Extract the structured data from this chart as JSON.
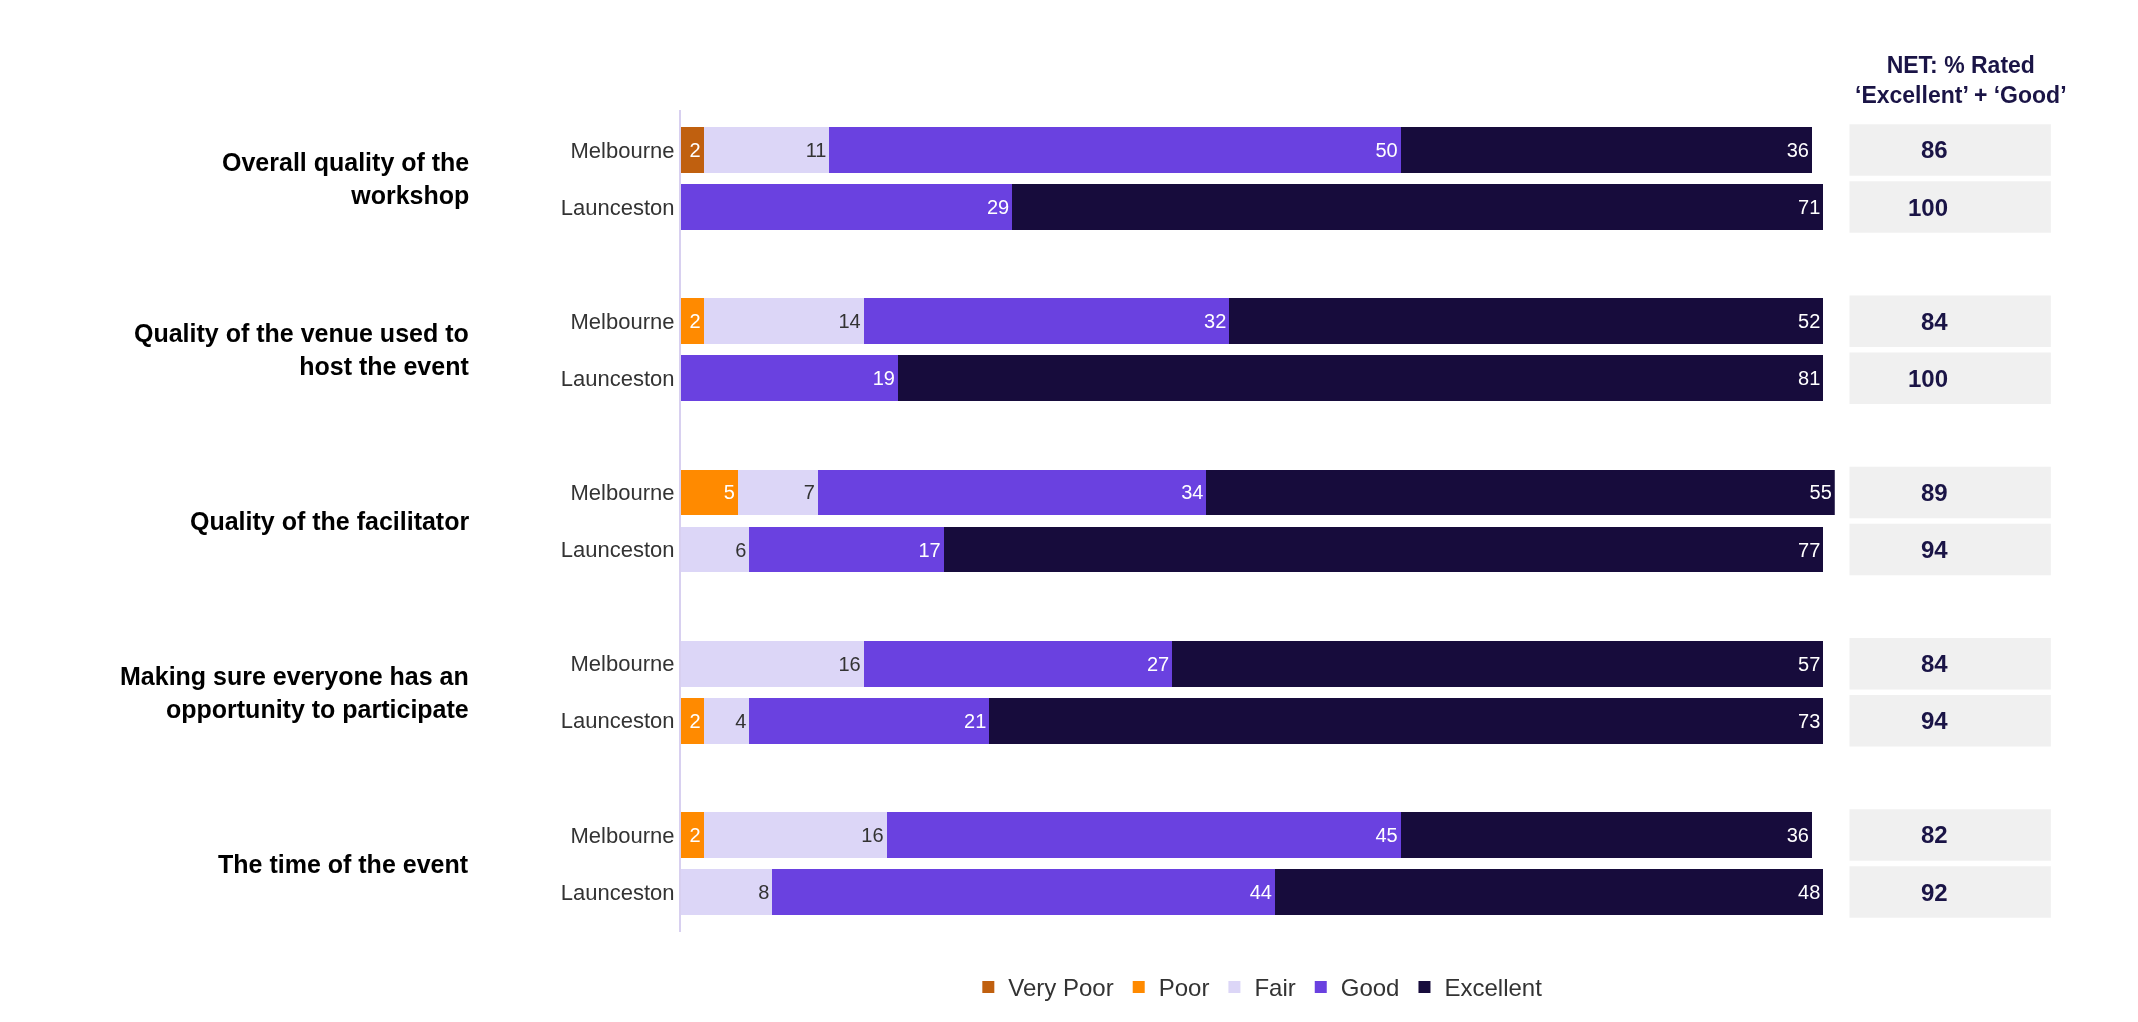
{
  "chart_data": {
    "type": "bar",
    "orientation": "horizontal",
    "stacked": true,
    "data_labels": true,
    "categories": [
      "Melbourne",
      "Launceston",
      "Melbourne",
      "Launceston",
      "Melbourne",
      "Launceston",
      "Melbourne",
      "Launceston",
      "Melbourne",
      "Launceston"
    ],
    "series": [
      {
        "name": "Very Poor",
        "color": "#c0600f",
        "values": [
          2,
          null,
          null,
          null,
          null,
          null,
          null,
          null,
          null,
          null
        ]
      },
      {
        "name": "Poor",
        "color": "#ff8a00",
        "values": [
          null,
          null,
          2,
          null,
          5,
          null,
          null,
          2,
          2,
          null
        ]
      },
      {
        "name": "Fair",
        "color": "#dcd6f7",
        "values": [
          11,
          null,
          14,
          null,
          7,
          6,
          16,
          4,
          16,
          8
        ]
      },
      {
        "name": "Good",
        "color": "#6a41e0",
        "values": [
          50,
          29,
          32,
          19,
          34,
          17,
          27,
          21,
          45,
          44
        ]
      },
      {
        "name": "Excellent",
        "color": "#170c3c",
        "values": [
          36,
          71,
          52,
          81,
          55,
          77,
          57,
          73,
          36,
          48
        ]
      }
    ],
    "xlim": [
      0,
      101
    ],
    "annotations": [
      "Overall quality of the workshop",
      "Quality of the venue used to host the event",
      "Quality of the facilitator",
      "Making sure everyone has an opportunity to participate",
      "The time of the event",
      "NET: % Rated\n‘Excellent’ + ‘Good’",
      "86",
      "100",
      "84",
      "100",
      "89",
      "94",
      "84",
      "94",
      "82",
      "92"
    ],
    "legend": "bottom"
  }
}
